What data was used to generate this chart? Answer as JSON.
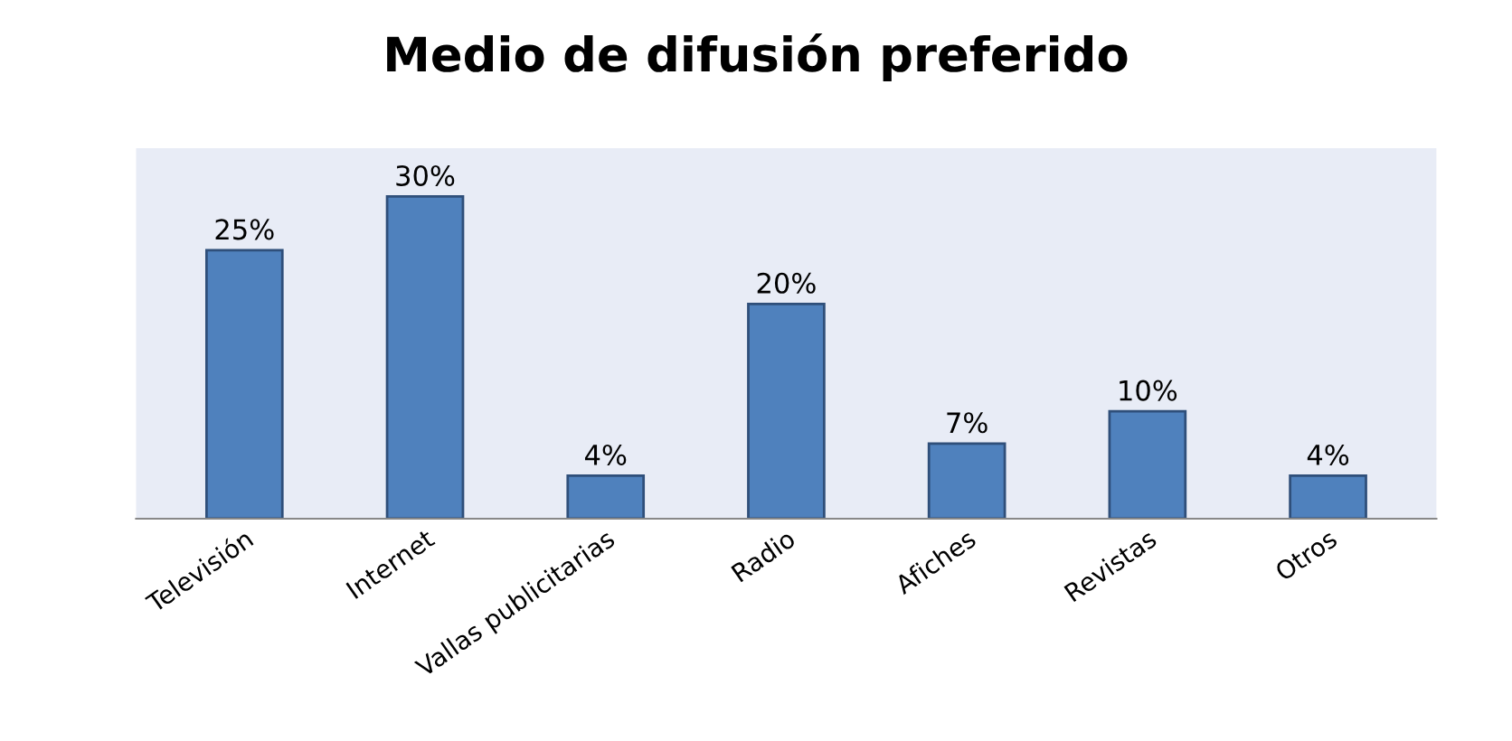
{
  "chart_data": {
    "type": "bar",
    "title": "Medio de difusión preferido",
    "categories": [
      "Televisión",
      "Internet",
      "Vallas publicitarias",
      "Radio",
      "Afiches",
      "Revistas",
      "Otros"
    ],
    "values": [
      25,
      30,
      4,
      20,
      7,
      10,
      4
    ],
    "value_labels": [
      "25%",
      "30%",
      "4%",
      "20%",
      "7%",
      "10%",
      "4%"
    ],
    "color": "#4f81bd",
    "grid": false,
    "legend": false
  }
}
